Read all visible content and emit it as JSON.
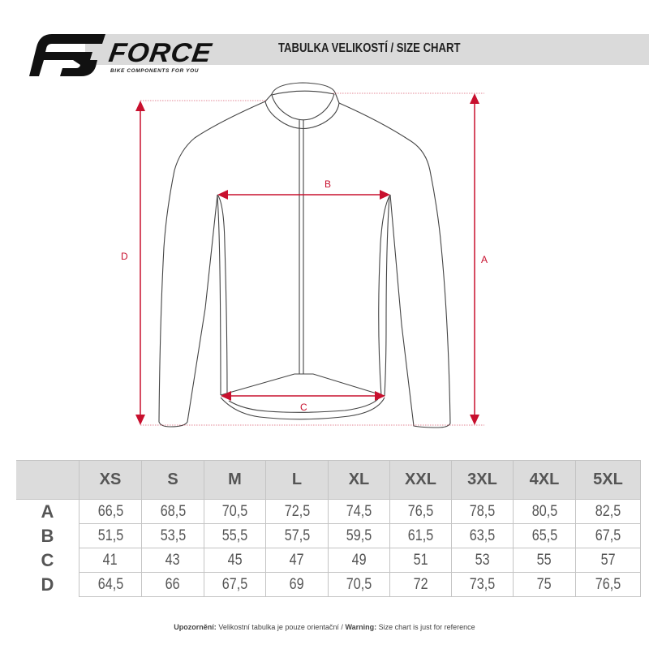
{
  "header": {
    "title": "TABULKA VELIKOSTÍ / SIZE CHART",
    "brand": "FORCE",
    "tagline": "BIKE COMPONENTS FOR YOU"
  },
  "diagram": {
    "labels": {
      "A": "A",
      "B": "B",
      "C": "C",
      "D": "D"
    },
    "accent_color": "#c8102e",
    "outline_color": "#444444"
  },
  "table": {
    "sizes": [
      "XS",
      "S",
      "M",
      "L",
      "XL",
      "XXL",
      "3XL",
      "4XL",
      "5XL"
    ],
    "rows": [
      {
        "label": "A",
        "values": [
          "66,5",
          "68,5",
          "70,5",
          "72,5",
          "74,5",
          "76,5",
          "78,5",
          "80,5",
          "82,5"
        ]
      },
      {
        "label": "B",
        "values": [
          "51,5",
          "53,5",
          "55,5",
          "57,5",
          "59,5",
          "61,5",
          "63,5",
          "65,5",
          "67,5"
        ]
      },
      {
        "label": "C",
        "values": [
          "41",
          "43",
          "45",
          "47",
          "49",
          "51",
          "53",
          "55",
          "57"
        ]
      },
      {
        "label": "D",
        "values": [
          "64,5",
          "66",
          "67,5",
          "69",
          "70,5",
          "72",
          "73,5",
          "75",
          "76,5"
        ]
      }
    ]
  },
  "footer": {
    "cz_label": "Upozornění:",
    "cz_text": "Velikostní tabulka je pouze orientační /",
    "en_label": "Warning:",
    "en_text": "Size chart is just for reference"
  }
}
